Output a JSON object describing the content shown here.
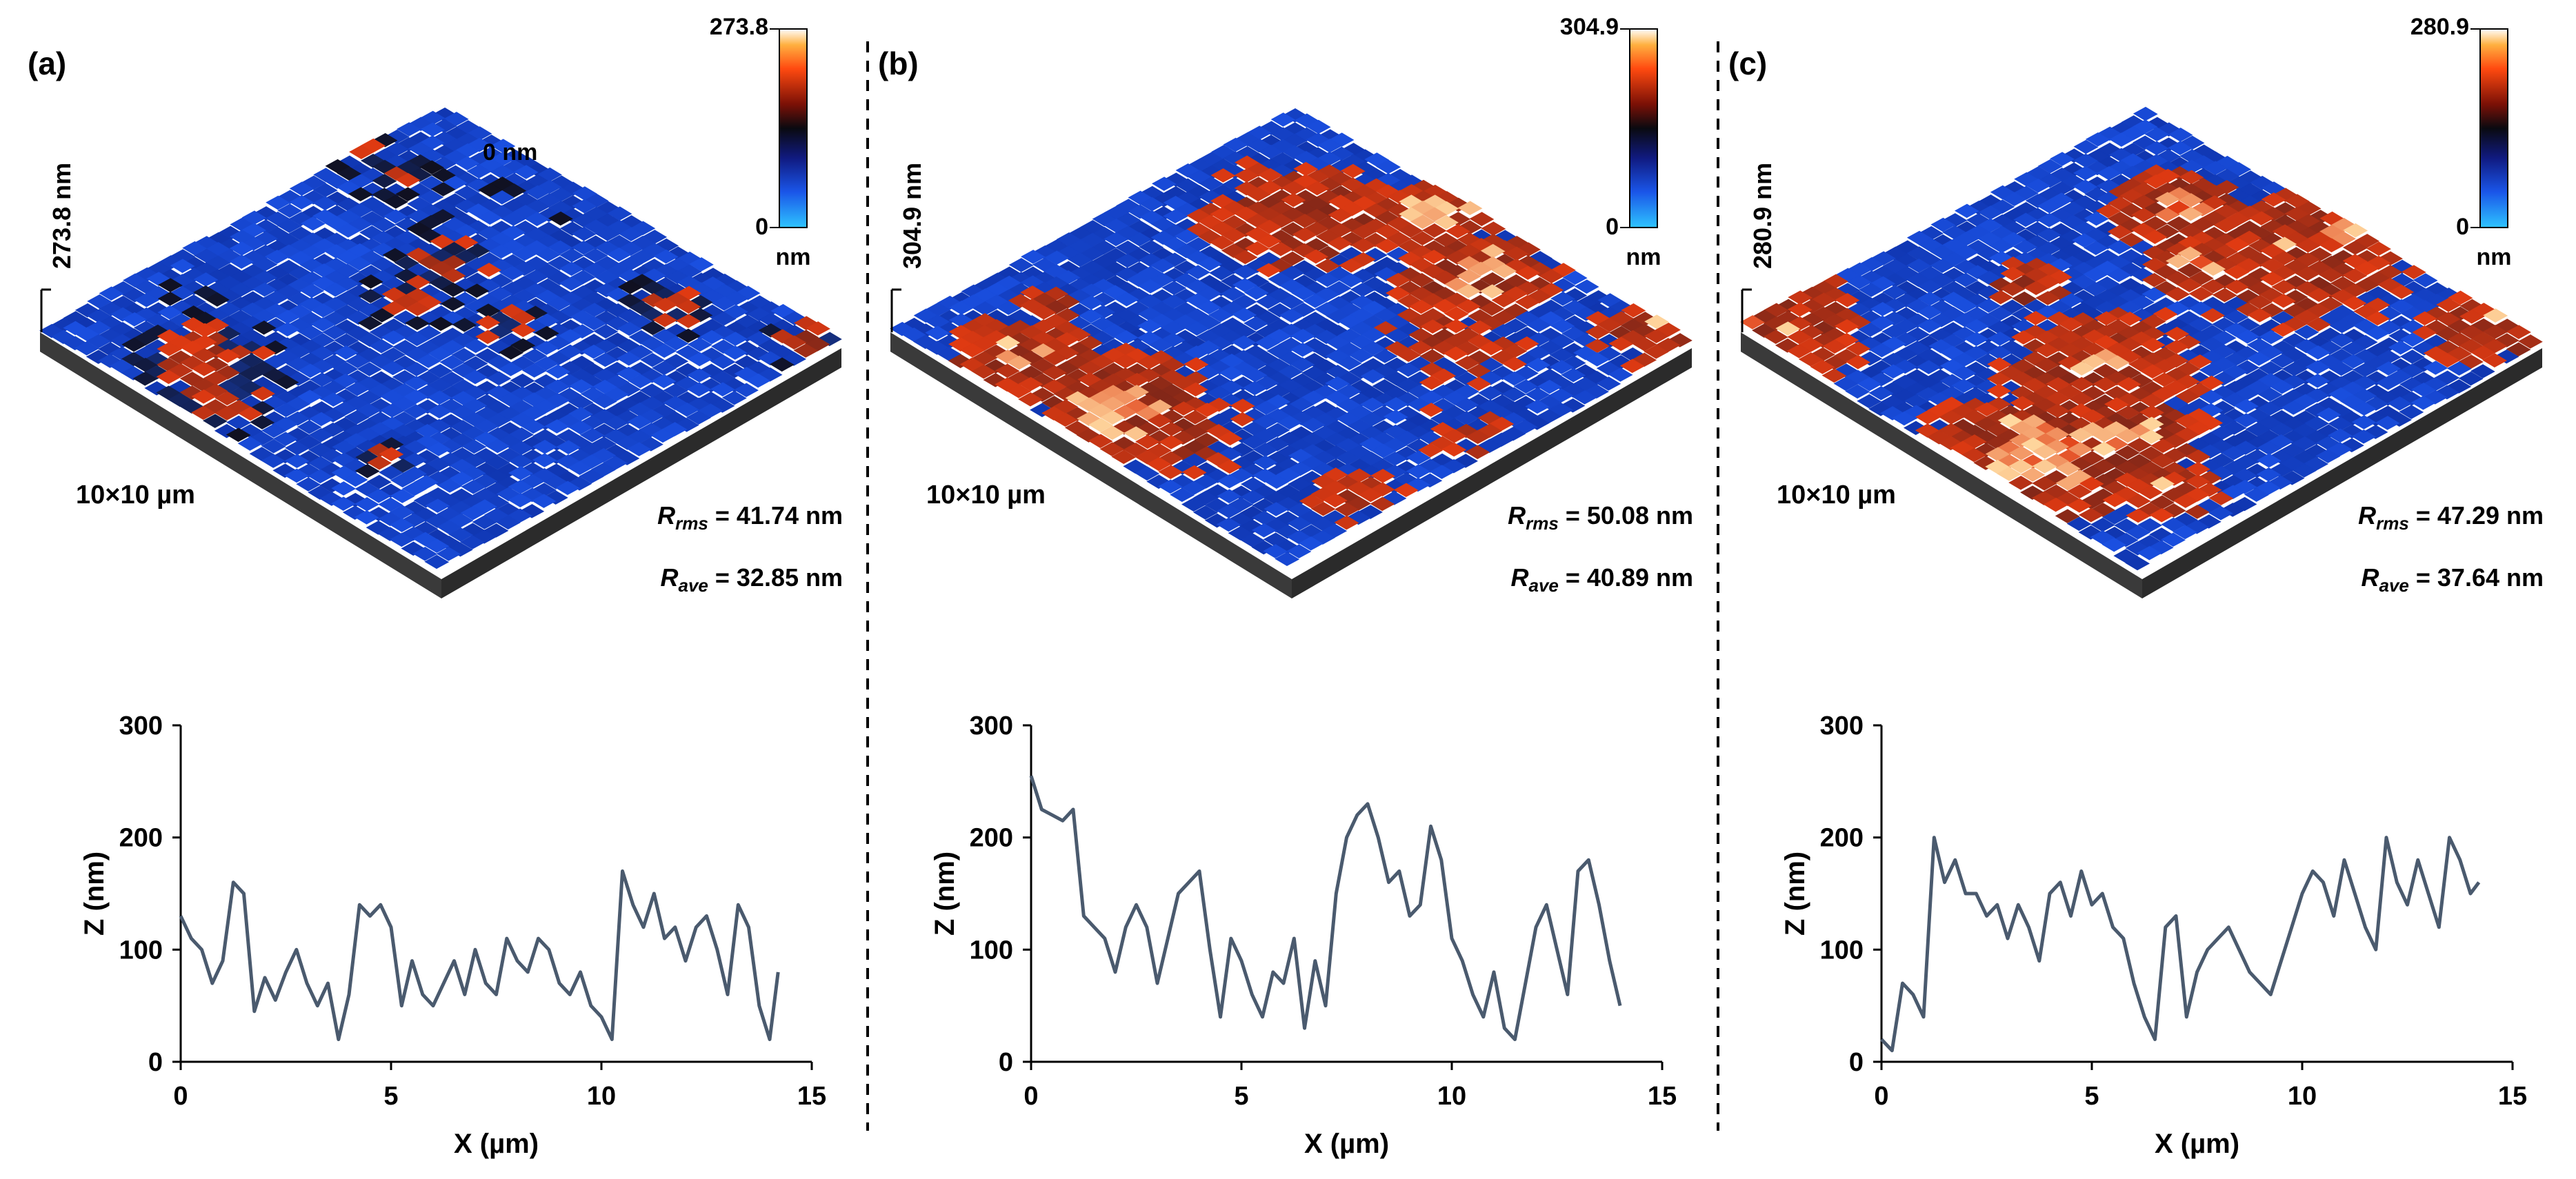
{
  "panels": [
    {
      "label": "(a)",
      "height_axis_label": "273.8 nm",
      "colorbar": {
        "max_label": "273.8",
        "min_label": "0",
        "unit": "nm"
      },
      "surface_annotation": "0 nm",
      "scan_size": "10×10 µm",
      "rrms": {
        "sym": "R",
        "sub": "rms",
        "value": "= 41.74 nm"
      },
      "rave": {
        "sym": "R",
        "sub": "ave",
        "value": "= 32.85 nm"
      },
      "surface_mix": [
        0.18,
        0.06,
        0.01
      ],
      "seed": 11
    },
    {
      "label": "(b)",
      "height_axis_label": "304.9 nm",
      "colorbar": {
        "max_label": "304.9",
        "min_label": "0",
        "unit": "nm"
      },
      "scan_size": "10×10 µm",
      "rrms": {
        "sym": "R",
        "sub": "rms",
        "value": "= 50.08 nm"
      },
      "rave": {
        "sym": "R",
        "sub": "ave",
        "value": "= 40.89 nm"
      },
      "surface_mix": [
        0.42,
        0.18,
        0.04
      ],
      "seed": 29
    },
    {
      "label": "(c)",
      "height_axis_label": "280.9 nm",
      "colorbar": {
        "max_label": "280.9",
        "min_label": "0",
        "unit": "nm"
      },
      "scan_size": "10×10 µm",
      "rrms": {
        "sym": "R",
        "sub": "rms",
        "value": "= 47.29 nm"
      },
      "rave": {
        "sym": "R",
        "sub": "ave",
        "value": "= 37.64 nm"
      },
      "surface_mix": [
        0.5,
        0.28,
        0.07
      ],
      "seed": 47
    }
  ],
  "colors": {
    "surface_low": "#1a4fe0",
    "surface_mid": "#101020",
    "surface_high": "#e03a12",
    "surface_peak": "#ffd9a0",
    "surface_side": "#2b2b2b",
    "line": "#4a5a6e",
    "axis": "#000000",
    "divider": "#000000"
  },
  "chart_data": [
    {
      "type": "line",
      "panel": "(a)",
      "xlabel": "X (µm)",
      "ylabel": "Z (nm)",
      "xlim": [
        0,
        15
      ],
      "ylim": [
        0,
        300
      ],
      "xticks": [
        "0",
        "5",
        "10",
        "15"
      ],
      "yticks": [
        "0",
        "100",
        "200",
        "300"
      ],
      "x": [
        0,
        0.25,
        0.5,
        0.75,
        1,
        1.25,
        1.5,
        1.75,
        2,
        2.25,
        2.5,
        2.75,
        3,
        3.25,
        3.5,
        3.75,
        4,
        4.25,
        4.5,
        4.75,
        5,
        5.25,
        5.5,
        5.75,
        6,
        6.25,
        6.5,
        6.75,
        7,
        7.25,
        7.5,
        7.75,
        8,
        8.25,
        8.5,
        8.75,
        9,
        9.25,
        9.5,
        9.75,
        10,
        10.25,
        10.5,
        10.75,
        11,
        11.25,
        11.5,
        11.75,
        12,
        12.25,
        12.5,
        12.75,
        13,
        13.25,
        13.5,
        13.75,
        14,
        14.2
      ],
      "y": [
        130,
        110,
        100,
        70,
        90,
        160,
        150,
        45,
        75,
        55,
        80,
        100,
        70,
        50,
        70,
        20,
        60,
        140,
        130,
        140,
        120,
        50,
        90,
        60,
        50,
        70,
        90,
        60,
        100,
        70,
        60,
        110,
        90,
        80,
        110,
        100,
        70,
        60,
        80,
        50,
        40,
        20,
        170,
        140,
        120,
        150,
        110,
        120,
        90,
        120,
        130,
        100,
        60,
        140,
        120,
        50,
        20,
        80
      ]
    },
    {
      "type": "line",
      "panel": "(b)",
      "xlabel": "X (µm)",
      "ylabel": "Z (nm)",
      "xlim": [
        0,
        15
      ],
      "ylim": [
        0,
        300
      ],
      "xticks": [
        "0",
        "5",
        "10",
        "15"
      ],
      "yticks": [
        "0",
        "100",
        "200",
        "300"
      ],
      "x": [
        0,
        0.25,
        0.5,
        0.75,
        1,
        1.25,
        1.5,
        1.75,
        2,
        2.25,
        2.5,
        2.75,
        3,
        3.25,
        3.5,
        3.75,
        4,
        4.25,
        4.5,
        4.75,
        5,
        5.25,
        5.5,
        5.75,
        6,
        6.25,
        6.5,
        6.75,
        7,
        7.25,
        7.5,
        7.75,
        8,
        8.25,
        8.5,
        8.75,
        9,
        9.25,
        9.5,
        9.75,
        10,
        10.25,
        10.5,
        10.75,
        11,
        11.25,
        11.5,
        11.75,
        12,
        12.25,
        12.5,
        12.75,
        13,
        13.25,
        13.5,
        13.75,
        14
      ],
      "y": [
        255,
        225,
        220,
        215,
        225,
        130,
        120,
        110,
        80,
        120,
        140,
        120,
        70,
        110,
        150,
        160,
        170,
        100,
        40,
        110,
        90,
        60,
        40,
        80,
        70,
        110,
        30,
        90,
        50,
        150,
        200,
        220,
        230,
        200,
        160,
        170,
        130,
        140,
        210,
        180,
        110,
        90,
        60,
        40,
        80,
        30,
        20,
        70,
        120,
        140,
        100,
        60,
        170,
        180,
        140,
        90,
        50
      ]
    },
    {
      "type": "line",
      "panel": "(c)",
      "xlabel": "X (µm)",
      "ylabel": "Z (nm)",
      "xlim": [
        0,
        15
      ],
      "ylim": [
        0,
        300
      ],
      "xticks": [
        "0",
        "5",
        "10",
        "15"
      ],
      "yticks": [
        "0",
        "100",
        "200",
        "300"
      ],
      "x": [
        0,
        0.25,
        0.5,
        0.75,
        1,
        1.25,
        1.5,
        1.75,
        2,
        2.25,
        2.5,
        2.75,
        3,
        3.25,
        3.5,
        3.75,
        4,
        4.25,
        4.5,
        4.75,
        5,
        5.25,
        5.5,
        5.75,
        6,
        6.25,
        6.5,
        6.75,
        7,
        7.25,
        7.5,
        7.75,
        8,
        8.25,
        8.5,
        8.75,
        9,
        9.25,
        9.5,
        9.75,
        10,
        10.25,
        10.5,
        10.75,
        11,
        11.25,
        11.5,
        11.75,
        12,
        12.25,
        12.5,
        12.75,
        13,
        13.25,
        13.5,
        13.75,
        14,
        14.2
      ],
      "y": [
        20,
        10,
        70,
        60,
        40,
        200,
        160,
        180,
        150,
        150,
        130,
        140,
        110,
        140,
        120,
        90,
        150,
        160,
        130,
        170,
        140,
        150,
        120,
        110,
        70,
        40,
        20,
        120,
        130,
        40,
        80,
        100,
        110,
        120,
        100,
        80,
        70,
        60,
        90,
        120,
        150,
        170,
        160,
        130,
        180,
        150,
        120,
        100,
        200,
        160,
        140,
        180,
        150,
        120,
        200,
        180,
        150,
        160
      ]
    }
  ]
}
